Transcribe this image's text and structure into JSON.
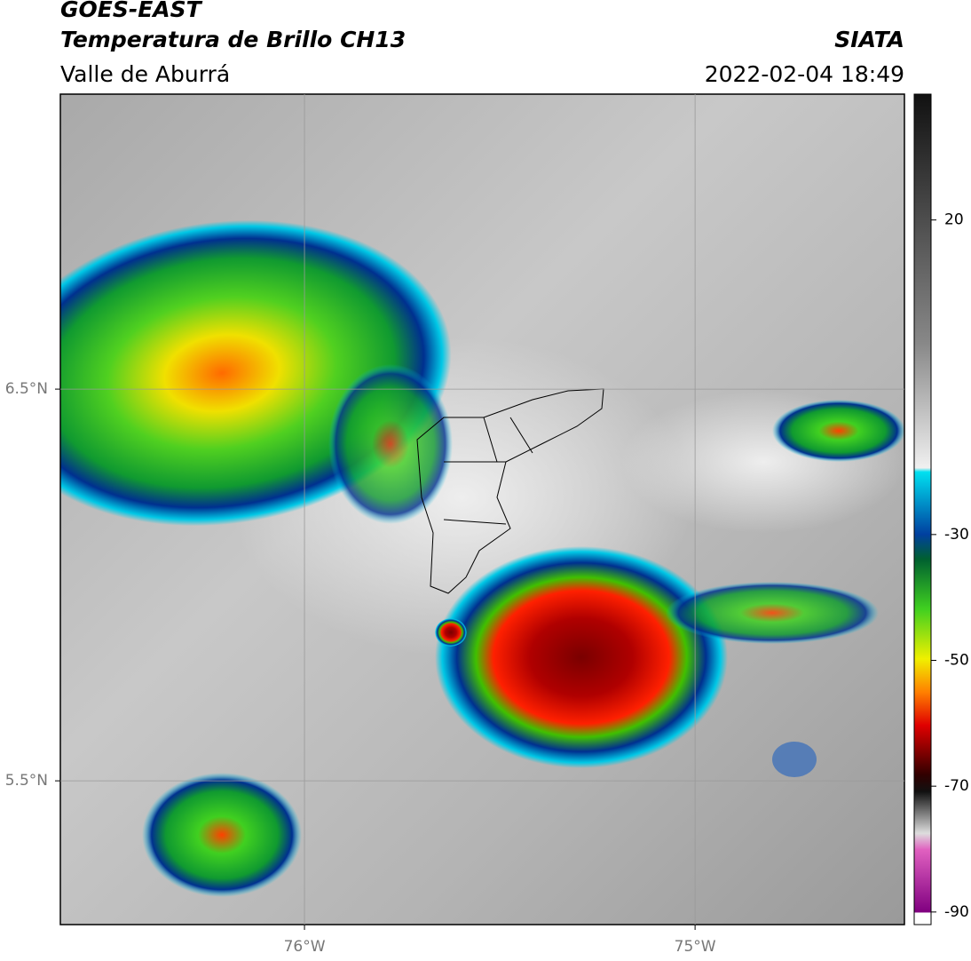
{
  "header": {
    "title": "GOES-EAST",
    "subtitle": "Temperatura de Brillo CH13",
    "region": "Valle de Aburrá",
    "source": "SIATA",
    "datetime": "2022-02-04 18:49"
  },
  "map": {
    "xlim": [
      -76.625,
      -74.464
    ],
    "ylim": [
      5.133,
      7.253
    ],
    "xticks": [
      {
        "value": -76,
        "label": "76°W"
      },
      {
        "value": -75,
        "label": "75°W"
      }
    ],
    "yticks": [
      {
        "value": 6.5,
        "label": "6.5°N"
      },
      {
        "value": 5.5,
        "label": "5.5°N"
      }
    ],
    "grid": true
  },
  "colorbar": {
    "clim": [
      -92,
      40
    ],
    "ticks": [
      20,
      -30,
      -50,
      -70,
      -90
    ]
  }
}
